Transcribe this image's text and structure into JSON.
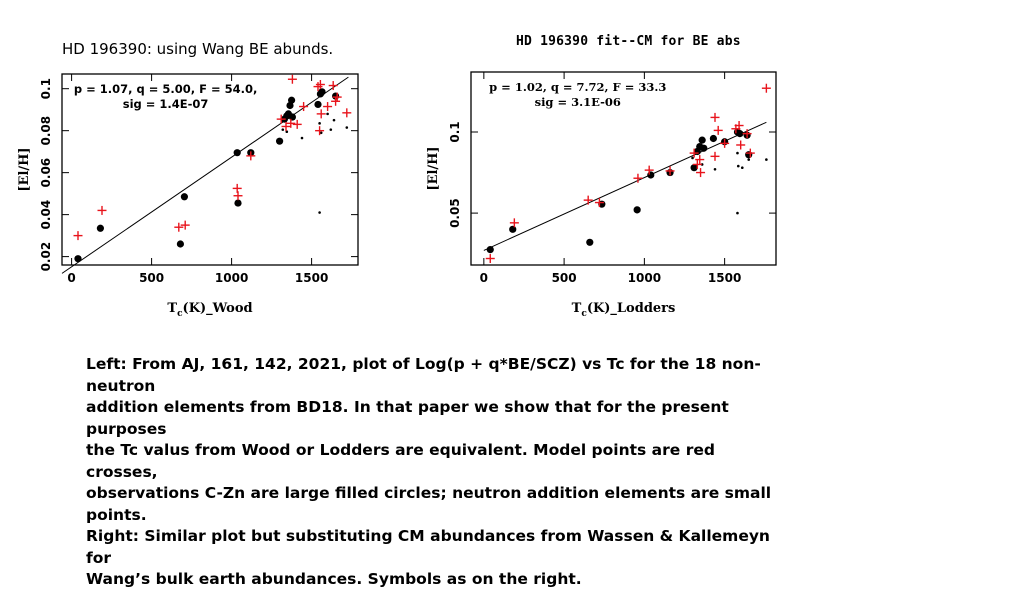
{
  "slide": {
    "left_title": "HD 196390: using Wang BE abunds.",
    "caption_lines": [
      "Left: From AJ, 161, 142, 2021, plot of Log(p + q*BE/SCZ) vs Tc for the 18 non-neutron",
      "addition elements from BD18.  In that paper we show that for the present purposes",
      "the Tc valus from Wood or Lodders are equivalent.  Model points are red crosses,",
      "observations C-Zn are large filled circles; neutron addition elements are small points.",
      "Right: Similar plot but substituting CM abundances from Wassen & Kallemeyn for",
      "Wang’s bulk earth abundances.   Symbols as on the right."
    ]
  },
  "colors": {
    "model": "#e8141c",
    "observed": "#000000",
    "fit_line": "#000000"
  },
  "chart_data": [
    {
      "type": "scatter",
      "title": "",
      "annotation": [
        "p = 1.07, q = 5.00, F = 54.0,",
        "sig = 1.4E-07"
      ],
      "xlabel_main": "T",
      "xlabel_sub": "c",
      "xlabel_rest": "(K)_Wood",
      "ylabel": "[El/H]",
      "xlim": [
        -60,
        1790
      ],
      "ylim": [
        0.016,
        0.107
      ],
      "xticks": [
        0,
        500,
        1000,
        1500
      ],
      "xtick_labels": [
        "0",
        "500",
        "1000",
        "1500"
      ],
      "yticks": [
        0.02,
        0.04,
        0.06,
        0.08,
        0.1
      ],
      "ytick_labels": [
        "0.02",
        "0.04",
        "0.06",
        "0.08",
        "0.1"
      ],
      "fit_line": [
        [
          -60,
          0.012
        ],
        [
          1730,
          0.1055
        ]
      ],
      "series": [
        {
          "name": "",
          "role": "observed",
          "x": [
            40,
            180,
            680,
            705,
            1035,
            1040,
            1120,
            1300,
            1330,
            1345,
            1355,
            1365,
            1375,
            1380,
            1540,
            1555,
            1565,
            1650
          ],
          "y": [
            0.019,
            0.0335,
            0.026,
            0.0485,
            0.0695,
            0.0455,
            0.0695,
            0.075,
            0.0855,
            0.087,
            0.088,
            0.092,
            0.0945,
            0.0865,
            0.0925,
            0.0975,
            0.0985,
            0.0965
          ]
        },
        {
          "name": "",
          "role": "neutron-addition",
          "x": [
            1320,
            1345,
            1440,
            1550,
            1560,
            1600,
            1620,
            1640,
            1720,
            1550
          ],
          "y": [
            0.0805,
            0.0795,
            0.0765,
            0.0835,
            0.079,
            0.088,
            0.0805,
            0.085,
            0.0815,
            0.041
          ]
        },
        {
          "name": "",
          "role": "model",
          "x": [
            40,
            190,
            670,
            710,
            1035,
            1040,
            1120,
            1310,
            1340,
            1370,
            1380,
            1410,
            1450,
            1540,
            1555,
            1560,
            1600,
            1635,
            1650,
            1660,
            1720,
            1550
          ],
          "y": [
            0.03,
            0.042,
            0.034,
            0.035,
            0.0525,
            0.049,
            0.068,
            0.0855,
            0.082,
            0.0835,
            0.1045,
            0.083,
            0.0915,
            0.101,
            0.102,
            0.088,
            0.0915,
            0.1015,
            0.094,
            0.096,
            0.0885,
            0.08
          ]
        }
      ]
    },
    {
      "type": "scatter",
      "title": "HD 196390 fit--CM for BE abs",
      "annotation": [
        "p = 1.02, q = 7.72, F = 33.3",
        "sig = 3.1E-06"
      ],
      "xlabel_main": "T",
      "xlabel_sub": "c",
      "xlabel_rest": "(K)_Lodders",
      "ylabel": "[El/H]",
      "xlim": [
        -80,
        1820
      ],
      "ylim": [
        0.018,
        0.137
      ],
      "xticks": [
        0,
        500,
        1000,
        1500
      ],
      "xtick_labels": [
        "0",
        "500",
        "1000",
        "1500"
      ],
      "yticks": [
        0.05,
        0.1
      ],
      "ytick_labels": [
        "0.05",
        "0.1"
      ],
      "fit_line": [
        [
          0,
          0.027
        ],
        [
          1760,
          0.106
        ]
      ],
      "series": [
        {
          "name": "",
          "role": "observed",
          "x": [
            40,
            180,
            660,
            735,
            955,
            1040,
            1160,
            1310,
            1330,
            1345,
            1360,
            1370,
            1430,
            1500,
            1580,
            1595,
            1640,
            1650
          ],
          "y": [
            0.0275,
            0.04,
            0.032,
            0.0555,
            0.052,
            0.0735,
            0.075,
            0.078,
            0.088,
            0.091,
            0.095,
            0.09,
            0.096,
            0.094,
            0.1,
            0.099,
            0.098,
            0.086
          ]
        },
        {
          "name": "",
          "role": "neutron-addition",
          "x": [
            1300,
            1360,
            1440,
            1580,
            1585,
            1610,
            1640,
            1650,
            1760,
            1580
          ],
          "y": [
            0.084,
            0.08,
            0.077,
            0.087,
            0.079,
            0.078,
            0.085,
            0.083,
            0.083,
            0.05
          ]
        },
        {
          "name": "",
          "role": "model",
          "x": [
            40,
            190,
            650,
            720,
            960,
            1030,
            1160,
            1310,
            1330,
            1345,
            1350,
            1440,
            1460,
            1500,
            1570,
            1590,
            1600,
            1640,
            1660,
            1760,
            1440
          ],
          "y": [
            0.022,
            0.044,
            0.058,
            0.0565,
            0.0715,
            0.0765,
            0.076,
            0.087,
            0.08,
            0.083,
            0.075,
            0.109,
            0.101,
            0.093,
            0.102,
            0.104,
            0.092,
            0.099,
            0.087,
            0.127,
            0.085
          ]
        }
      ]
    }
  ]
}
